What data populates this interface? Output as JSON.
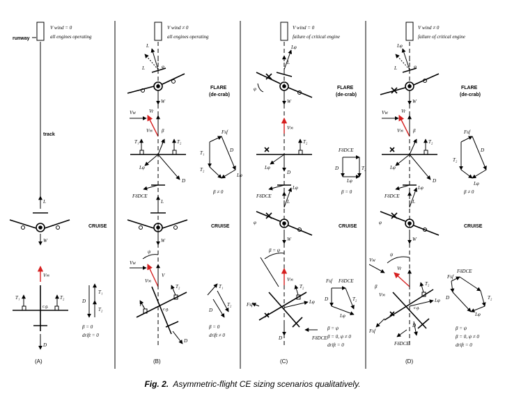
{
  "caption": {
    "label": "Fig. 2.",
    "text": "Asymmetric-flight CE sizing scenarios qualitatively."
  },
  "panels": [
    {
      "id": "A",
      "label": "(A)",
      "wind_note": "V wind = 0",
      "engines_note": "all engines operating",
      "runway_label": "runway",
      "track_label": "track",
      "cruise_label": "CRUISE",
      "beta_text": "β = 0",
      "drift_text": "drift = 0",
      "vectors": [
        "L",
        "W",
        "V∞",
        "T1",
        "T2",
        "D",
        "c.g."
      ]
    },
    {
      "id": "B",
      "label": "(B)",
      "wind_note": "V wind ≠ 0",
      "engines_note": "all engines operating",
      "flare_label": "FLARE",
      "decrab_label": "(de-crab)",
      "cruise_label": "CRUISE",
      "beta_top": "β ≠ 0",
      "beta_text": "β = 0",
      "drift_text": "drift ≠ 0",
      "vectors": [
        "L",
        "Lφ",
        "W",
        "Vw",
        "V∞",
        "Vr",
        "Fsf",
        "T1",
        "T2",
        "D",
        "FδDCE",
        "ψ",
        "φ",
        "β",
        "c.g."
      ]
    },
    {
      "id": "C",
      "label": "(C)",
      "wind_note": "V wind = 0",
      "engines_note": "failure of critical engine",
      "flare_label": "FLARE",
      "decrab_label": "(de-crab)",
      "cruise_label": "CRUISE",
      "beta_top": "β = 0",
      "beta_mid": "β = ψ",
      "beta_text": "β = ψ",
      "beta_sub": "β = 0, ψ ≠ 0",
      "drift_text": "drift = 0",
      "vectors": [
        "L",
        "Lφ",
        "W",
        "V∞",
        "Fsf",
        "T2",
        "D",
        "FδDCE",
        "φ",
        "β",
        "c.g."
      ]
    },
    {
      "id": "D",
      "label": "(D)",
      "wind_note": "V wind ≠ 0",
      "engines_note": "failure of critical engine",
      "flare_label": "FLARE",
      "decrab_label": "(de-crab)",
      "cruise_label": "CRUISE",
      "beta_top": "β ≠ 0",
      "beta_text": "β = ψ",
      "beta_sub": "β = 0, ψ ≠ 0",
      "drift_text": "drift = 0",
      "vectors": [
        "L",
        "Lφ",
        "W",
        "Vw",
        "V∞",
        "Vr",
        "Fsf",
        "T2",
        "D",
        "FδDCE",
        "ψ",
        "φ",
        "β",
        "c.g."
      ]
    }
  ],
  "colors": {
    "ink": "#000000",
    "red": "#d62020"
  }
}
